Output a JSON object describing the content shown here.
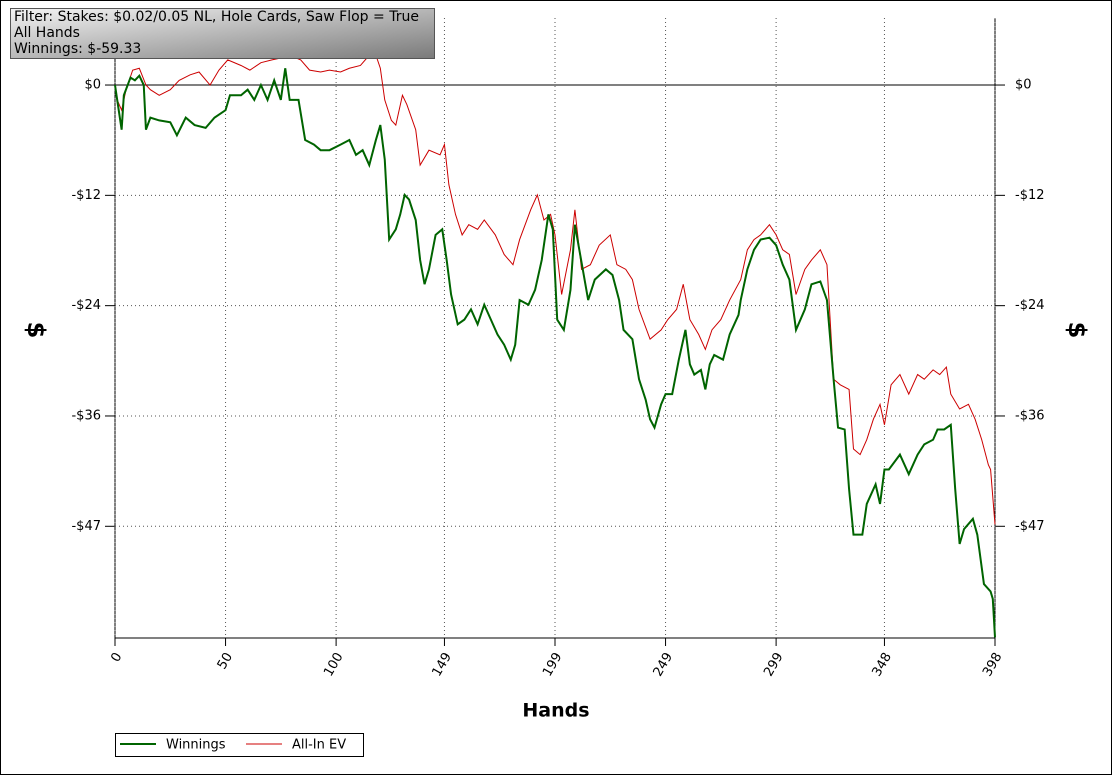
{
  "chart_data": {
    "type": "line",
    "annotations": [
      "Filter: Stakes: $0.02/0.05 NL, Hole Cards, Saw Flop = True",
      "All Hands",
      "Winnings: $-59.33"
    ],
    "x_label": "Hands",
    "y_label": "$",
    "xlim": [
      0,
      398
    ],
    "xticks": [
      0,
      50,
      100,
      149,
      199,
      249,
      299,
      348,
      398
    ],
    "ylim": [
      -59.4,
      7.2
    ],
    "yticks": [
      {
        "value": 0,
        "label": "$0"
      },
      {
        "value": -11.85,
        "label": "-$12"
      },
      {
        "value": -23.7,
        "label": "-$24"
      },
      {
        "value": -35.55,
        "label": "-$36"
      },
      {
        "value": -47.4,
        "label": "-$47"
      }
    ],
    "grid": true,
    "legend": "bottom-left",
    "series": [
      {
        "name": "Winnings",
        "color": "#006400",
        "x": [
          0,
          1,
          3,
          4,
          7,
          9,
          11,
          13,
          14,
          16,
          20,
          25,
          28,
          32,
          36,
          41,
          45,
          50,
          52,
          57,
          60,
          63,
          66,
          69,
          72,
          75,
          77,
          79,
          83,
          86,
          90,
          93,
          97,
          102,
          106,
          109,
          112,
          115,
          118,
          120,
          122,
          124,
          127,
          129,
          131,
          133,
          136,
          138,
          140,
          142,
          145,
          148,
          150,
          152,
          155,
          158,
          161,
          164,
          167,
          170,
          173,
          176,
          179,
          181,
          183,
          187,
          190,
          193,
          196,
          198,
          200,
          203,
          206,
          208,
          210,
          214,
          217,
          222,
          225,
          228,
          230,
          234,
          237,
          240,
          242,
          244,
          247,
          249,
          252,
          255,
          258,
          260,
          262,
          265,
          267,
          269,
          271,
          275,
          278,
          282,
          283,
          286,
          289,
          292,
          296,
          299,
          302,
          305,
          308,
          312,
          315,
          319,
          322,
          325,
          327,
          330,
          332,
          334,
          338,
          340,
          344,
          346,
          348,
          350,
          355,
          359,
          363,
          366,
          370,
          372,
          375,
          378,
          380,
          382,
          384,
          388,
          390,
          393,
          396,
          397,
          398
        ],
        "values": [
          0,
          -1.6,
          -4.8,
          -1.1,
          0.8,
          0.5,
          1.0,
          0,
          -4.8,
          -3.5,
          -3.8,
          -4.0,
          -5.4,
          -3.5,
          -4.3,
          -4.6,
          -3.5,
          -2.7,
          -1.1,
          -1.1,
          -0.5,
          -1.6,
          0,
          -1.6,
          0.5,
          -1.6,
          1.8,
          -1.6,
          -1.6,
          -5.9,
          -6.4,
          -7.0,
          -7.0,
          -6.4,
          -5.9,
          -7.5,
          -7.0,
          -8.6,
          -5.9,
          -4.3,
          -8.0,
          -16.6,
          -15.5,
          -13.9,
          -11.8,
          -12.3,
          -14.5,
          -18.8,
          -21.4,
          -19.8,
          -16.1,
          -15.5,
          -18.8,
          -22.5,
          -25.7,
          -25.2,
          -24.1,
          -25.7,
          -23.6,
          -25.2,
          -26.8,
          -27.9,
          -29.5,
          -27.9,
          -23.1,
          -23.6,
          -22.0,
          -18.8,
          -13.9,
          -15.5,
          -25.2,
          -26.3,
          -22.0,
          -15.0,
          -17.7,
          -23.1,
          -20.9,
          -19.8,
          -20.4,
          -23.1,
          -26.3,
          -27.3,
          -31.6,
          -33.8,
          -35.9,
          -36.8,
          -34.3,
          -33.2,
          -33.2,
          -29.5,
          -26.3,
          -30.0,
          -31.1,
          -30.6,
          -32.7,
          -30.0,
          -29.0,
          -29.5,
          -26.8,
          -24.7,
          -23.1,
          -19.8,
          -17.7,
          -16.6,
          -16.4,
          -17.2,
          -19.3,
          -20.9,
          -26.3,
          -24.1,
          -21.4,
          -21.1,
          -23.1,
          -31.6,
          -36.8,
          -37.0,
          -43.4,
          -48.3,
          -48.3,
          -45.0,
          -42.9,
          -45.0,
          -41.3,
          -41.3,
          -39.7,
          -41.8,
          -39.7,
          -38.6,
          -38.1,
          -37.0,
          -37.0,
          -36.5,
          -43.4,
          -49.3,
          -47.7,
          -46.6,
          -48.3,
          -53.6,
          -54.4,
          -55.2,
          -59.33
        ]
      },
      {
        "name": "All-In EV",
        "color": "#cc0000",
        "x": [
          0,
          1,
          3,
          5,
          8,
          11,
          14,
          16,
          20,
          25,
          29,
          34,
          38,
          43,
          47,
          51,
          57,
          61,
          66,
          71,
          75,
          79,
          84,
          88,
          93,
          97,
          102,
          106,
          111,
          115,
          118,
          120,
          122,
          125,
          127,
          130,
          132,
          136,
          138,
          142,
          147,
          149,
          151,
          154,
          157,
          160,
          164,
          167,
          172,
          176,
          180,
          183,
          188,
          191,
          194,
          197,
          199,
          202,
          206,
          208,
          211,
          215,
          219,
          224,
          227,
          231,
          234,
          237,
          242,
          247,
          250,
          254,
          257,
          260,
          264,
          267,
          270,
          274,
          278,
          283,
          286,
          289,
          292,
          296,
          299,
          302,
          305,
          308,
          312,
          315,
          319,
          322,
          325,
          328,
          332,
          334,
          337,
          340,
          343,
          346,
          348,
          351,
          355,
          359,
          363,
          366,
          370,
          373,
          376,
          378,
          382,
          386,
          389,
          392,
          395,
          396,
          398
        ],
        "values": [
          0,
          -1.6,
          -2.7,
          -0.5,
          1.6,
          1.8,
          0,
          -0.5,
          -1.1,
          -0.5,
          0.5,
          1.1,
          1.4,
          0,
          1.6,
          2.7,
          2.1,
          1.6,
          2.4,
          2.7,
          2.9,
          3.2,
          2.7,
          1.6,
          1.4,
          1.6,
          1.4,
          1.8,
          2.1,
          3.2,
          3.2,
          1.8,
          -1.6,
          -3.8,
          -4.3,
          -1.1,
          -2.1,
          -4.8,
          -8.6,
          -7.0,
          -7.5,
          -6.4,
          -10.7,
          -13.9,
          -16.1,
          -15.0,
          -15.5,
          -14.5,
          -16.1,
          -18.2,
          -19.3,
          -16.6,
          -13.4,
          -11.8,
          -14.5,
          -13.9,
          -16.1,
          -22.5,
          -17.7,
          -13.4,
          -19.8,
          -19.3,
          -17.2,
          -16.1,
          -19.3,
          -19.8,
          -20.9,
          -24.1,
          -27.3,
          -26.3,
          -25.2,
          -24.1,
          -21.4,
          -25.2,
          -26.8,
          -28.4,
          -26.3,
          -25.2,
          -23.1,
          -20.9,
          -17.7,
          -16.6,
          -16.1,
          -15.0,
          -16.1,
          -17.7,
          -18.2,
          -22.5,
          -19.8,
          -18.8,
          -17.7,
          -19.3,
          -31.6,
          -32.2,
          -32.7,
          -39.1,
          -39.7,
          -38.1,
          -35.9,
          -34.3,
          -36.5,
          -32.2,
          -31.1,
          -33.2,
          -31.1,
          -31.6,
          -30.6,
          -31.1,
          -30.3,
          -33.2,
          -34.8,
          -34.3,
          -35.9,
          -38.1,
          -40.8,
          -41.3,
          -47.2
        ]
      }
    ]
  }
}
